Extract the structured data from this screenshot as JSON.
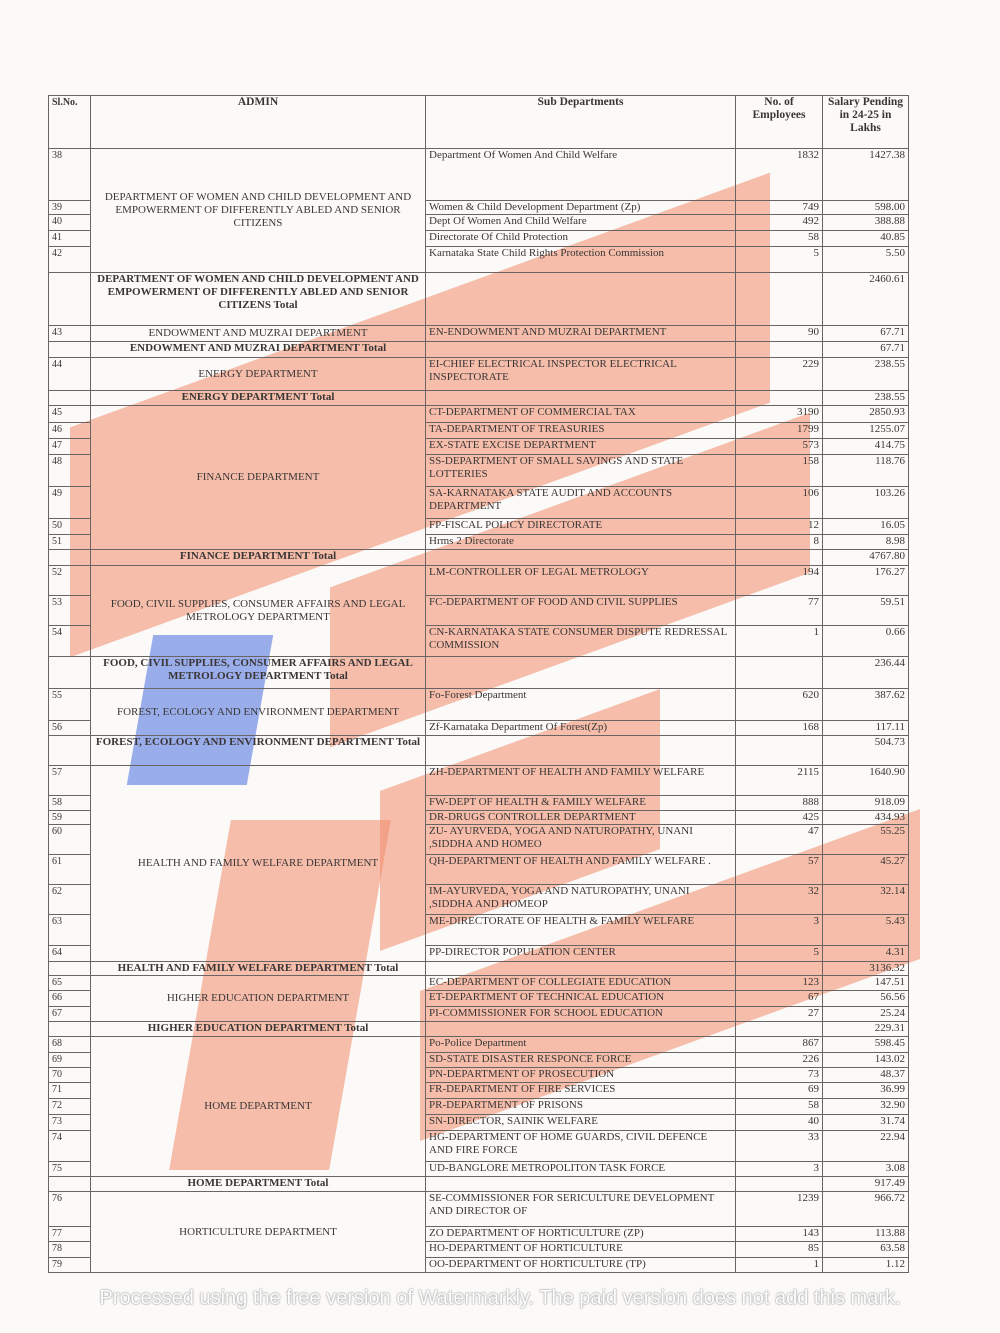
{
  "table": {
    "headers": {
      "sl": "Sl.No.",
      "admin": "ADMIN",
      "sub": "Sub Departments",
      "employees": "No. of Employees",
      "salary": "Salary Pending in 24-25 in Lakhs"
    },
    "groups": [
      {
        "admin": "DEPARTMENT OF WOMEN AND CHILD DEVELOPMENT AND EMPOWERMENT OF DIFFERENTLY ABLED AND SENIOR CITIZENS",
        "rows": [
          {
            "sl": "38",
            "sub": "Department  Of Women And Child Welfare",
            "emp": "1832",
            "sal": "1427.38"
          },
          {
            "sl": "39",
            "sub": "Women & Child Development Department (Zp)",
            "emp": "749",
            "sal": "598.00"
          },
          {
            "sl": "40",
            "sub": "Dept Of Women And Child Welfare",
            "emp": "492",
            "sal": "388.88"
          },
          {
            "sl": "41",
            "sub": "Directorate Of Child Protection",
            "emp": "58",
            "sal": "40.85"
          },
          {
            "sl": "42",
            "sub": "Karnataka State Child Rights Protection Commission",
            "emp": "5",
            "sal": "5.50"
          }
        ],
        "total_label": "DEPARTMENT OF WOMEN AND CHILD DEVELOPMENT AND EMPOWERMENT OF DIFFERENTLY ABLED AND SENIOR CITIZENS Total",
        "total": "2460.61"
      },
      {
        "admin": "ENDOWMENT AND MUZRAI DEPARTMENT",
        "rows": [
          {
            "sl": "43",
            "sub": "EN-ENDOWMENT AND MUZRAI DEPARTMENT",
            "emp": "90",
            "sal": "67.71"
          }
        ],
        "total_label": "ENDOWMENT AND MUZRAI DEPARTMENT Total",
        "total": "67.71"
      },
      {
        "admin": "ENERGY DEPARTMENT",
        "rows": [
          {
            "sl": "44",
            "sub": "EI-CHIEF ELECTRICAL INSPECTOR ELECTRICAL INSPECTORATE",
            "emp": "229",
            "sal": "238.55"
          }
        ],
        "total_label": "ENERGY DEPARTMENT Total",
        "total": "238.55"
      },
      {
        "admin": "FINANCE DEPARTMENT",
        "rows": [
          {
            "sl": "45",
            "sub": "CT-DEPARTMENT OF COMMERCIAL TAX",
            "emp": "3190",
            "sal": "2850.93"
          },
          {
            "sl": "46",
            "sub": "TA-DEPARTMENT  OF TREASURIES",
            "emp": "1799",
            "sal": "1255.07"
          },
          {
            "sl": "47",
            "sub": "EX-STATE EXCISE DEPARTMENT",
            "emp": "573",
            "sal": "414.75"
          },
          {
            "sl": "48",
            "sub": "SS-DEPARTMENT OF SMALL SAVINGS AND STATE LOTTERIES",
            "emp": "158",
            "sal": "118.76"
          },
          {
            "sl": "49",
            "sub": "SA-KARNATAKA STATE AUDIT AND ACCOUNTS DEPARTMENT",
            "emp": "106",
            "sal": "103.26"
          },
          {
            "sl": "50",
            "sub": "FP-FISCAL POLICY DIRECTORATE",
            "emp": "12",
            "sal": "16.05"
          },
          {
            "sl": "51",
            "sub": "Hrms 2 Directorate",
            "emp": "8",
            "sal": "8.98"
          }
        ],
        "total_label": "FINANCE DEPARTMENT Total",
        "total": "4767.80"
      },
      {
        "admin": "FOOD, CIVIL SUPPLIES, CONSUMER AFFAIRS AND LEGAL METROLOGY DEPARTMENT",
        "rows": [
          {
            "sl": "52",
            "sub": "LM-CONTROLLER OF LEGAL METROLOGY",
            "emp": "194",
            "sal": "176.27"
          },
          {
            "sl": "53",
            "sub": "FC-DEPARTMENT OF FOOD AND CIVIL SUPPLIES",
            "emp": "77",
            "sal": "59.51"
          },
          {
            "sl": "54",
            "sub": "CN-KARNATAKA STATE CONSUMER DISPUTE REDRESSAL COMMISSION",
            "emp": "1",
            "sal": "0.66"
          }
        ],
        "total_label": "FOOD, CIVIL SUPPLIES, CONSUMER AFFAIRS AND LEGAL METROLOGY DEPARTMENT Total",
        "total": "236.44"
      },
      {
        "admin": "FOREST, ECOLOGY AND ENVIRONMENT DEPARTMENT",
        "rows": [
          {
            "sl": "55",
            "sub": "Fo-Forest  Department",
            "emp": "620",
            "sal": "387.62"
          },
          {
            "sl": "56",
            "sub": "Zf-Karnataka Department  Of Forest(Zp)",
            "emp": "168",
            "sal": "117.11"
          }
        ],
        "total_label": "FOREST, ECOLOGY AND ENVIRONMENT DEPARTMENT Total",
        "total": "504.73"
      },
      {
        "admin": "HEALTH AND FAMILY WELFARE DEPARTMENT",
        "rows": [
          {
            "sl": "57",
            "sub": "ZH-DEPARTMENT OF HEALTH AND FAMILY WELFARE",
            "emp": "2115",
            "sal": "1640.90"
          },
          {
            "sl": "58",
            "sub": "FW-DEPT OF HEALTH & FAMILY WELFARE",
            "emp": "888",
            "sal": "918.09"
          },
          {
            "sl": "59",
            "sub": "DR-DRUGS CONTROLLER  DEPARTMENT",
            "emp": "425",
            "sal": "434.93"
          },
          {
            "sl": "60",
            "sub": "ZU- AYURVEDA, YOGA AND NATUROPATHY, UNANI ,SIDDHA AND HOMEO",
            "emp": "47",
            "sal": "55.25"
          },
          {
            "sl": "61",
            "sub": "QH-DEPARTMENT  OF HEALTH AND FAMILY WELFARE .",
            "emp": "57",
            "sal": "45.27"
          },
          {
            "sl": "62",
            "sub": "IM-AYURVEDA, YOGA AND NATUROPATHY, UNANI ,SIDDHA AND HOMEOP",
            "emp": "32",
            "sal": "32.14"
          },
          {
            "sl": "63",
            "sub": "ME-DIRECTORATE OF HEALTH & FAMILY WELFARE",
            "emp": "3",
            "sal": "5.43"
          },
          {
            "sl": "64",
            "sub": "PP-DIRECTOR POPULATION CENTER",
            "emp": "5",
            "sal": "4.31"
          }
        ],
        "total_label": "HEALTH AND FAMILY WELFARE DEPARTMENT Total",
        "total": "3136.32"
      },
      {
        "admin": "HIGHER EDUCATION DEPARTMENT",
        "rows": [
          {
            "sl": "65",
            "sub": "EC-DEPARTMENT OF COLLEGIATE EDUCATION",
            "emp": "123",
            "sal": "147.51"
          },
          {
            "sl": "66",
            "sub": "ET-DEPARTMENT OF TECHNICAL EDUCATION",
            "emp": "67",
            "sal": "56.56"
          },
          {
            "sl": "67",
            "sub": "PI-COMMISSIONER FOR SCHOOL EDUCATION",
            "emp": "27",
            "sal": "25.24"
          }
        ],
        "total_label": "HIGHER EDUCATION DEPARTMENT Total",
        "total": "229.31"
      },
      {
        "admin": "HOME DEPARTMENT",
        "rows": [
          {
            "sl": "68",
            "sub": "Po-Police Department",
            "emp": "867",
            "sal": "598.45"
          },
          {
            "sl": "69",
            "sub": "SD-STATE DISASTER RESPONCE FORCE",
            "emp": "226",
            "sal": "143.02"
          },
          {
            "sl": "70",
            "sub": "PN-DEPARTMENT  OF PROSECUTION",
            "emp": "73",
            "sal": "48.37"
          },
          {
            "sl": "71",
            "sub": "FR-DEPARTMENT  OF FIRE SERVICES",
            "emp": "69",
            "sal": "36.99"
          },
          {
            "sl": "72",
            "sub": "PR-DEPARTMENT  OF PRISONS",
            "emp": "58",
            "sal": "32.90"
          },
          {
            "sl": "73",
            "sub": "SN-DIRECTOR, SAINIK WELFARE",
            "emp": "40",
            "sal": "31.74"
          },
          {
            "sl": "74",
            "sub": "HG-DEPARTMENT OF HOME GUARDS, CIVIL DEFENCE AND FIRE FORCE",
            "emp": "33",
            "sal": "22.94"
          },
          {
            "sl": "75",
            "sub": "UD-BANGLORE METROPOLITON TASK FORCE",
            "emp": "3",
            "sal": "3.08"
          }
        ],
        "total_label": "HOME DEPARTMENT Total",
        "total": "917.49"
      },
      {
        "admin": "HORTICULTURE DEPARTMENT",
        "rows": [
          {
            "sl": "76",
            "sub": "SE-COMMISSIONER FOR SERICULTURE DEVELOPMENT AND DIRECTOR OF",
            "emp": "1239",
            "sal": "966.72"
          },
          {
            "sl": "77",
            "sub": "ZO DEPARTMENT  OF HORTICULTURE (ZP)",
            "emp": "143",
            "sal": "113.88"
          },
          {
            "sl": "78",
            "sub": "HO-DEPARTMENT  OF HORTICULTURE",
            "emp": "85",
            "sal": "63.58"
          },
          {
            "sl": "79",
            "sub": "OO-DEPARTMENT  OF HORTICULTURE (TP)",
            "emp": "1",
            "sal": "1.12"
          }
        ]
      }
    ]
  },
  "watermark": {
    "text": "Processed using the free version of Watermarkly. The paid version does not add this mark.",
    "colors": {
      "orange": "#f08a6a",
      "blue": "#4a6ee0"
    }
  }
}
